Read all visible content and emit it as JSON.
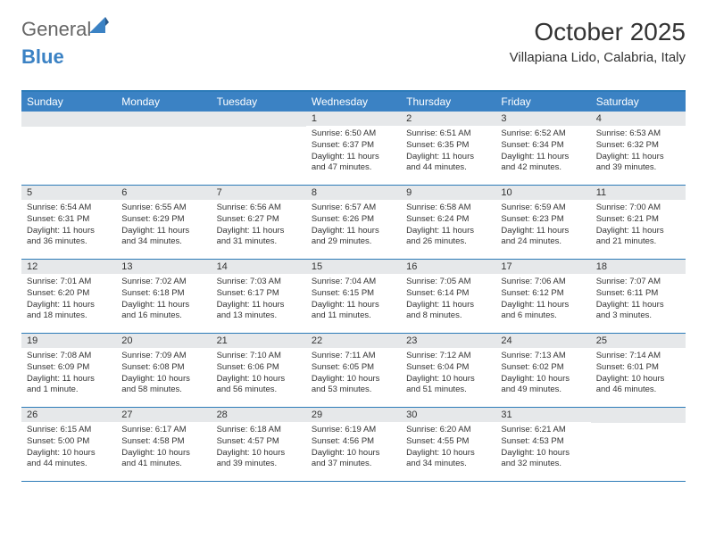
{
  "colors": {
    "accent": "#3b82c4",
    "accent_border": "#2c7bb8",
    "daynum_bg": "#e6e8ea",
    "text": "#333333",
    "logo_gray": "#666666",
    "background": "#ffffff"
  },
  "logo": {
    "general": "General",
    "blue": "Blue"
  },
  "header": {
    "month_title": "October 2025",
    "location": "Villapiana Lido, Calabria, Italy"
  },
  "day_names": [
    "Sunday",
    "Monday",
    "Tuesday",
    "Wednesday",
    "Thursday",
    "Friday",
    "Saturday"
  ],
  "weeks": [
    [
      {
        "empty": true
      },
      {
        "empty": true
      },
      {
        "empty": true
      },
      {
        "day": "1",
        "sunrise": "Sunrise: 6:50 AM",
        "sunset": "Sunset: 6:37 PM",
        "daylight": "Daylight: 11 hours and 47 minutes."
      },
      {
        "day": "2",
        "sunrise": "Sunrise: 6:51 AM",
        "sunset": "Sunset: 6:35 PM",
        "daylight": "Daylight: 11 hours and 44 minutes."
      },
      {
        "day": "3",
        "sunrise": "Sunrise: 6:52 AM",
        "sunset": "Sunset: 6:34 PM",
        "daylight": "Daylight: 11 hours and 42 minutes."
      },
      {
        "day": "4",
        "sunrise": "Sunrise: 6:53 AM",
        "sunset": "Sunset: 6:32 PM",
        "daylight": "Daylight: 11 hours and 39 minutes."
      }
    ],
    [
      {
        "day": "5",
        "sunrise": "Sunrise: 6:54 AM",
        "sunset": "Sunset: 6:31 PM",
        "daylight": "Daylight: 11 hours and 36 minutes."
      },
      {
        "day": "6",
        "sunrise": "Sunrise: 6:55 AM",
        "sunset": "Sunset: 6:29 PM",
        "daylight": "Daylight: 11 hours and 34 minutes."
      },
      {
        "day": "7",
        "sunrise": "Sunrise: 6:56 AM",
        "sunset": "Sunset: 6:27 PM",
        "daylight": "Daylight: 11 hours and 31 minutes."
      },
      {
        "day": "8",
        "sunrise": "Sunrise: 6:57 AM",
        "sunset": "Sunset: 6:26 PM",
        "daylight": "Daylight: 11 hours and 29 minutes."
      },
      {
        "day": "9",
        "sunrise": "Sunrise: 6:58 AM",
        "sunset": "Sunset: 6:24 PM",
        "daylight": "Daylight: 11 hours and 26 minutes."
      },
      {
        "day": "10",
        "sunrise": "Sunrise: 6:59 AM",
        "sunset": "Sunset: 6:23 PM",
        "daylight": "Daylight: 11 hours and 24 minutes."
      },
      {
        "day": "11",
        "sunrise": "Sunrise: 7:00 AM",
        "sunset": "Sunset: 6:21 PM",
        "daylight": "Daylight: 11 hours and 21 minutes."
      }
    ],
    [
      {
        "day": "12",
        "sunrise": "Sunrise: 7:01 AM",
        "sunset": "Sunset: 6:20 PM",
        "daylight": "Daylight: 11 hours and 18 minutes."
      },
      {
        "day": "13",
        "sunrise": "Sunrise: 7:02 AM",
        "sunset": "Sunset: 6:18 PM",
        "daylight": "Daylight: 11 hours and 16 minutes."
      },
      {
        "day": "14",
        "sunrise": "Sunrise: 7:03 AM",
        "sunset": "Sunset: 6:17 PM",
        "daylight": "Daylight: 11 hours and 13 minutes."
      },
      {
        "day": "15",
        "sunrise": "Sunrise: 7:04 AM",
        "sunset": "Sunset: 6:15 PM",
        "daylight": "Daylight: 11 hours and 11 minutes."
      },
      {
        "day": "16",
        "sunrise": "Sunrise: 7:05 AM",
        "sunset": "Sunset: 6:14 PM",
        "daylight": "Daylight: 11 hours and 8 minutes."
      },
      {
        "day": "17",
        "sunrise": "Sunrise: 7:06 AM",
        "sunset": "Sunset: 6:12 PM",
        "daylight": "Daylight: 11 hours and 6 minutes."
      },
      {
        "day": "18",
        "sunrise": "Sunrise: 7:07 AM",
        "sunset": "Sunset: 6:11 PM",
        "daylight": "Daylight: 11 hours and 3 minutes."
      }
    ],
    [
      {
        "day": "19",
        "sunrise": "Sunrise: 7:08 AM",
        "sunset": "Sunset: 6:09 PM",
        "daylight": "Daylight: 11 hours and 1 minute."
      },
      {
        "day": "20",
        "sunrise": "Sunrise: 7:09 AM",
        "sunset": "Sunset: 6:08 PM",
        "daylight": "Daylight: 10 hours and 58 minutes."
      },
      {
        "day": "21",
        "sunrise": "Sunrise: 7:10 AM",
        "sunset": "Sunset: 6:06 PM",
        "daylight": "Daylight: 10 hours and 56 minutes."
      },
      {
        "day": "22",
        "sunrise": "Sunrise: 7:11 AM",
        "sunset": "Sunset: 6:05 PM",
        "daylight": "Daylight: 10 hours and 53 minutes."
      },
      {
        "day": "23",
        "sunrise": "Sunrise: 7:12 AM",
        "sunset": "Sunset: 6:04 PM",
        "daylight": "Daylight: 10 hours and 51 minutes."
      },
      {
        "day": "24",
        "sunrise": "Sunrise: 7:13 AM",
        "sunset": "Sunset: 6:02 PM",
        "daylight": "Daylight: 10 hours and 49 minutes."
      },
      {
        "day": "25",
        "sunrise": "Sunrise: 7:14 AM",
        "sunset": "Sunset: 6:01 PM",
        "daylight": "Daylight: 10 hours and 46 minutes."
      }
    ],
    [
      {
        "day": "26",
        "sunrise": "Sunrise: 6:15 AM",
        "sunset": "Sunset: 5:00 PM",
        "daylight": "Daylight: 10 hours and 44 minutes."
      },
      {
        "day": "27",
        "sunrise": "Sunrise: 6:17 AM",
        "sunset": "Sunset: 4:58 PM",
        "daylight": "Daylight: 10 hours and 41 minutes."
      },
      {
        "day": "28",
        "sunrise": "Sunrise: 6:18 AM",
        "sunset": "Sunset: 4:57 PM",
        "daylight": "Daylight: 10 hours and 39 minutes."
      },
      {
        "day": "29",
        "sunrise": "Sunrise: 6:19 AM",
        "sunset": "Sunset: 4:56 PM",
        "daylight": "Daylight: 10 hours and 37 minutes."
      },
      {
        "day": "30",
        "sunrise": "Sunrise: 6:20 AM",
        "sunset": "Sunset: 4:55 PM",
        "daylight": "Daylight: 10 hours and 34 minutes."
      },
      {
        "day": "31",
        "sunrise": "Sunrise: 6:21 AM",
        "sunset": "Sunset: 4:53 PM",
        "daylight": "Daylight: 10 hours and 32 minutes."
      },
      {
        "empty": true
      }
    ]
  ]
}
